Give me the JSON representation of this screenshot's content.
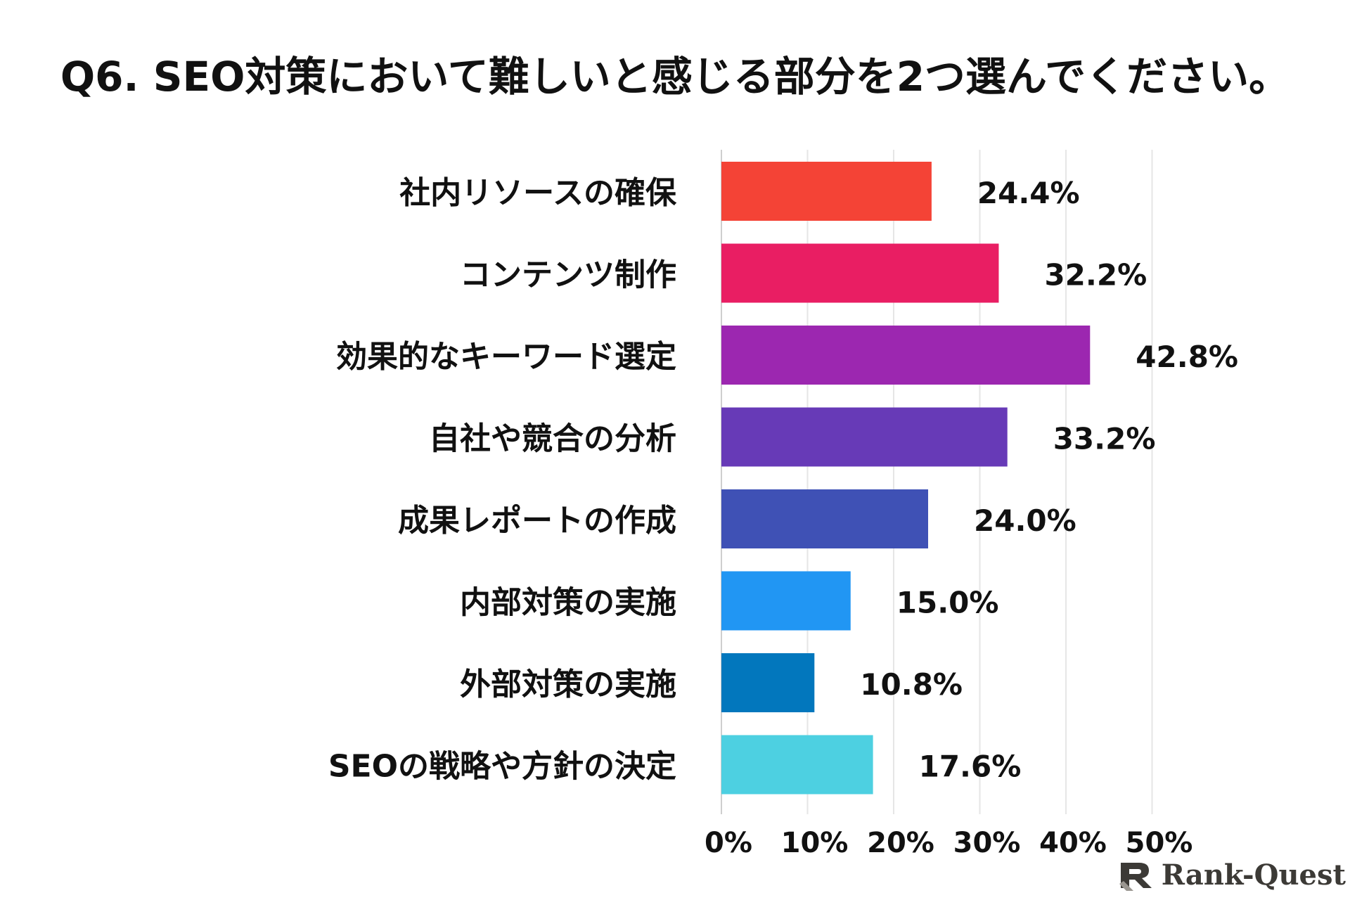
{
  "chart_data": {
    "type": "bar",
    "orientation": "horizontal",
    "title": "Q6. SEO対策において難しいと感じる部分を2つ選んでください。",
    "xlabel": "",
    "ylabel": "",
    "xlim": [
      0,
      50
    ],
    "x_ticks": [
      "0%",
      "10%",
      "20%",
      "30%",
      "40%",
      "50%"
    ],
    "x_tick_values": [
      0,
      10,
      20,
      30,
      40,
      50
    ],
    "grid": true,
    "legend": "none",
    "categories": [
      "社内リソースの確保",
      "コンテンツ制作",
      "効果的なキーワード選定",
      "自社や競合の分析",
      "成果レポートの作成",
      "内部対策の実施",
      "外部対策の実施",
      "SEOの戦略や方針の決定"
    ],
    "values": [
      24.4,
      32.2,
      42.8,
      33.2,
      24.0,
      15.0,
      10.8,
      17.6
    ],
    "value_labels": [
      "24.4%",
      "32.2%",
      "42.8%",
      "33.2%",
      "24.0%",
      "15.0%",
      "10.8%",
      "17.6%"
    ],
    "bar_colors": [
      "#f44336",
      "#e91e63",
      "#9c27b0",
      "#673ab7",
      "#3f51b5",
      "#2196f3",
      "#0277bd",
      "#4dd0e1"
    ]
  },
  "logo": {
    "text": "Rank-Quest",
    "icon": "rank-quest-logo-icon",
    "color": "#3c3a36"
  }
}
